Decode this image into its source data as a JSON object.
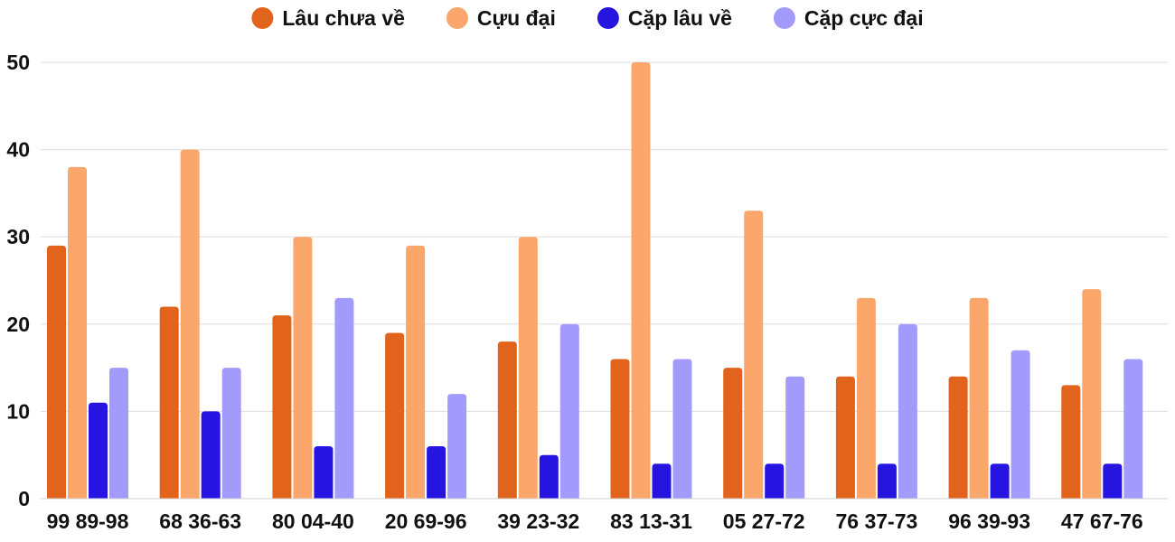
{
  "chart_data": {
    "type": "bar",
    "title": "",
    "xlabel": "",
    "ylabel": "",
    "ylim": [
      0,
      50
    ],
    "yticks": [
      0,
      10,
      20,
      30,
      40,
      50
    ],
    "grid": true,
    "legend_position": "top-center",
    "categories": [
      "99 89-98",
      "68 36-63",
      "80 04-40",
      "20 69-96",
      "39 23-32",
      "83 13-31",
      "05 27-72",
      "76 37-73",
      "96 39-93",
      "47 67-76"
    ],
    "series": [
      {
        "name": "Lâu chưa về",
        "color": "#e2631b",
        "values": [
          29,
          22,
          21,
          19,
          18,
          16,
          15,
          14,
          14,
          13
        ]
      },
      {
        "name": "Cựu đại",
        "color": "#fba66b",
        "values": [
          38,
          40,
          30,
          29,
          30,
          50,
          33,
          23,
          23,
          24
        ]
      },
      {
        "name": "Cặp lâu về",
        "color": "#2614e0",
        "values": [
          11,
          10,
          6,
          6,
          5,
          4,
          4,
          4,
          4,
          4
        ]
      },
      {
        "name": "Cặp cực đại",
        "color": "#a39bfb",
        "values": [
          15,
          15,
          23,
          12,
          20,
          16,
          14,
          20,
          17,
          16
        ]
      }
    ]
  }
}
